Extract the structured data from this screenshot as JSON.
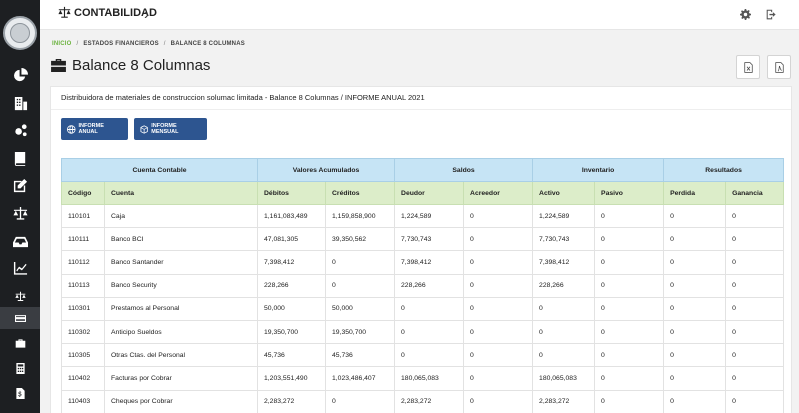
{
  "topbar": {
    "module_title": "CONTABILIDAD"
  },
  "breadcrumb": {
    "home": "INICIO",
    "sep": "/",
    "section": "ESTADOS FINANCIEROS",
    "current": "BALANCE 8 COLUMNAS"
  },
  "page": {
    "title": "Balance 8 Columnas",
    "subtitle": "Distribuidora de materiales de construccion solumac limitada - Balance 8 Columnas / INFORME ANUAL 2021"
  },
  "buttons": {
    "annual": "INFORME ANUAL",
    "monthly": "INFORME MENSUAL"
  },
  "colors": {
    "sidebar": "#1d1f22",
    "primary_button": "#2d5590",
    "group_header": "#c6e4f5",
    "column_header": "#dcedc9",
    "breadcrumb_home": "#6cb33f"
  },
  "table": {
    "groups": [
      "Cuenta Contable",
      "Valores Acumulados",
      "Saldos",
      "Inventario",
      "Resultados"
    ],
    "columns": [
      "Código",
      "Cuenta",
      "Débitos",
      "Créditos",
      "Deudor",
      "Acreedor",
      "Activo",
      "Pasivo",
      "Perdida",
      "Ganancia"
    ],
    "rows": [
      [
        "110101",
        "Caja",
        "1,161,083,489",
        "1,159,858,900",
        "1,224,589",
        "0",
        "1,224,589",
        "0",
        "0",
        "0"
      ],
      [
        "110111",
        "Banco BCI",
        "47,081,305",
        "39,350,562",
        "7,730,743",
        "0",
        "7,730,743",
        "0",
        "0",
        "0"
      ],
      [
        "110112",
        "Banco Santander",
        "7,398,412",
        "0",
        "7,398,412",
        "0",
        "7,398,412",
        "0",
        "0",
        "0"
      ],
      [
        "110113",
        "Banco Security",
        "228,266",
        "0",
        "228,266",
        "0",
        "228,266",
        "0",
        "0",
        "0"
      ],
      [
        "110301",
        "Prestamos al Personal",
        "50,000",
        "50,000",
        "0",
        "0",
        "0",
        "0",
        "0",
        "0"
      ],
      [
        "110302",
        "Anticipo Sueldos",
        "19,350,700",
        "19,350,700",
        "0",
        "0",
        "0",
        "0",
        "0",
        "0"
      ],
      [
        "110305",
        "Otras Ctas. del Personal",
        "45,736",
        "45,736",
        "0",
        "0",
        "0",
        "0",
        "0",
        "0"
      ],
      [
        "110402",
        "Facturas por Cobrar",
        "1,203,551,490",
        "1,023,486,407",
        "180,065,083",
        "0",
        "180,065,083",
        "0",
        "0",
        "0"
      ],
      [
        "110403",
        "Cheques por Cobrar",
        "2,283,272",
        "0",
        "2,283,272",
        "0",
        "2,283,272",
        "0",
        "0",
        "0"
      ]
    ]
  },
  "icons": {
    "sidebar": [
      "pie-chart-icon",
      "building-icon",
      "cogs-icon",
      "book-icon",
      "edit-icon",
      "balance-scale-icon",
      "inbox-icon",
      "line-chart-icon",
      "balance-scale-small-icon",
      "card-icon",
      "briefcase-icon",
      "calculator-icon",
      "dollar-file-icon"
    ]
  }
}
